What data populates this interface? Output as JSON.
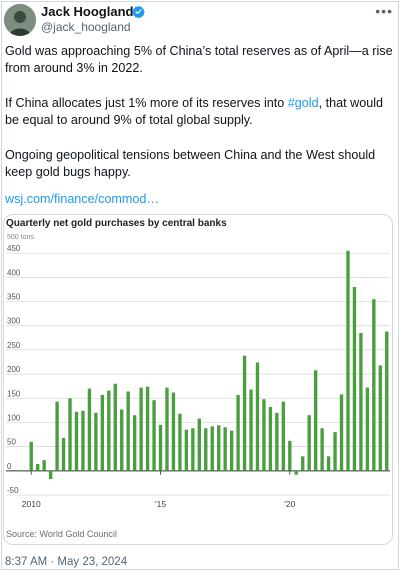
{
  "author": {
    "name": "Jack Hoogland",
    "handle": "@jack_hoogland",
    "verified": true
  },
  "menu_icon": "more-horizontal-icon",
  "post": {
    "para1": "Gold was approaching 5% of China’s total reserves as of April—a rise from around 3% in 2022.",
    "para2_before": "If China allocates just 1% more of its reserves into ",
    "hashtag": "#gold",
    "para2_after": ", that would be equal to around 9% of total global supply.",
    "para3": "Ongoing geopolitical tensions between China and the West should keep gold bugs happy.",
    "link": "wsj.com/finance/commod…"
  },
  "chart_data": {
    "type": "bar",
    "title": "Quarterly net gold purchases by central banks",
    "unit_label": "500 tons",
    "source": "Source: World Gold Council",
    "y_ticks": [
      450,
      400,
      350,
      300,
      250,
      200,
      150,
      100,
      50,
      0,
      -50
    ],
    "ylim": [
      -50,
      500
    ],
    "x_tick_labels": [
      "2010",
      "'15",
      "'20"
    ],
    "x_tick_indices": [
      0,
      20,
      40
    ],
    "bar_color": "#4a9e3f",
    "values": [
      60,
      14,
      22,
      -17,
      143,
      68,
      150,
      122,
      124,
      170,
      120,
      157,
      166,
      180,
      127,
      164,
      115,
      172,
      174,
      146,
      95,
      172,
      162,
      118,
      85,
      88,
      108,
      88,
      92,
      94,
      90,
      83,
      157,
      238,
      168,
      224,
      148,
      132,
      120,
      143,
      62,
      -8,
      30,
      115,
      208,
      88,
      30,
      80,
      158,
      455,
      380,
      285,
      172,
      355,
      218,
      288
    ]
  },
  "timestamp": "8:37 AM · May 23, 2024"
}
